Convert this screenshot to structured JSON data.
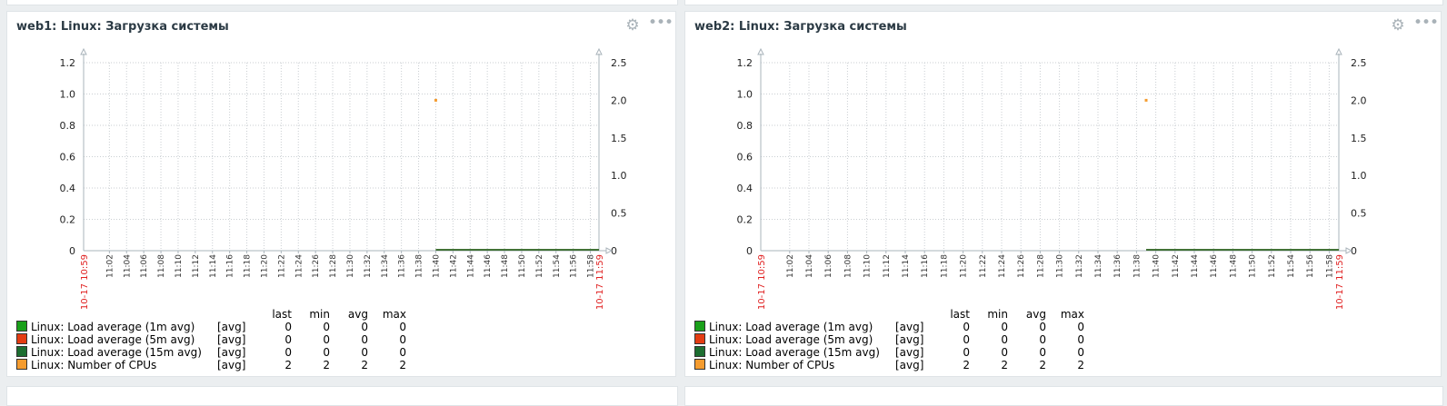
{
  "widgets": [
    {
      "title": "web1: Linux: Загрузка системы",
      "chart_data": {
        "type": "line",
        "x_start_label": "10-17 10:59",
        "x_end_label": "10-17 11:59",
        "x_ticks": [
          "11:02",
          "11:04",
          "11:06",
          "11:08",
          "11:10",
          "11:12",
          "11:14",
          "11:16",
          "11:18",
          "11:20",
          "11:22",
          "11:24",
          "11:26",
          "11:28",
          "11:30",
          "11:32",
          "11:34",
          "11:36",
          "11:38",
          "11:40",
          "11:42",
          "11:44",
          "11:46",
          "11:48",
          "11:50",
          "11:52",
          "11:54",
          "11:56",
          "11:58"
        ],
        "y_left_ticks": [
          "0",
          "0.2",
          "0.4",
          "0.6",
          "0.8",
          "1.0",
          "1.2"
        ],
        "y_left_range": [
          0,
          1.2
        ],
        "y_right_ticks": [
          "0",
          "0.5",
          "1.0",
          "1.5",
          "2.0",
          "2.5"
        ],
        "y_right_range": [
          0,
          2.5
        ],
        "grid": true,
        "series": [
          {
            "name": "Linux: Load average (1m avg)",
            "color": "#1aa01a",
            "axis": "left",
            "points": [
              [
                "11:40",
                0
              ],
              [
                "11:59",
                0
              ]
            ]
          },
          {
            "name": "Linux: Load average (5m avg)",
            "color": "#e43c12",
            "axis": "left",
            "points": [
              [
                "11:40",
                0
              ],
              [
                "11:59",
                0
              ]
            ]
          },
          {
            "name": "Linux: Load average (15m avg)",
            "color": "#1d6e31",
            "axis": "left",
            "points": [
              [
                "11:40",
                0
              ],
              [
                "11:59",
                0
              ]
            ]
          },
          {
            "name": "Linux: Number of CPUs",
            "color": "#f59c2f",
            "axis": "right",
            "points": [
              [
                "11:40",
                2
              ]
            ]
          }
        ]
      },
      "legend": {
        "headers": [
          "last",
          "min",
          "avg",
          "max"
        ],
        "rows": [
          {
            "name": "Linux: Load average (1m avg)",
            "fn": "[avg]",
            "color": "#1aa01a",
            "last": "0",
            "min": "0",
            "avg": "0",
            "max": "0"
          },
          {
            "name": "Linux: Load average (5m avg)",
            "fn": "[avg]",
            "color": "#e43c12",
            "last": "0",
            "min": "0",
            "avg": "0",
            "max": "0"
          },
          {
            "name": "Linux: Load average (15m avg)",
            "fn": "[avg]",
            "color": "#1d6e31",
            "last": "0",
            "min": "0",
            "avg": "0",
            "max": "0"
          },
          {
            "name": "Linux: Number of CPUs",
            "fn": "[avg]",
            "color": "#f59c2f",
            "last": "2",
            "min": "2",
            "avg": "2",
            "max": "2"
          }
        ]
      }
    },
    {
      "title": "web2: Linux: Загрузка системы",
      "chart_data": {
        "type": "line",
        "x_start_label": "10-17 10:59",
        "x_end_label": "10-17 11:59",
        "x_ticks": [
          "11:02",
          "11:04",
          "11:06",
          "11:08",
          "11:10",
          "11:12",
          "11:14",
          "11:16",
          "11:18",
          "11:20",
          "11:22",
          "11:24",
          "11:26",
          "11:28",
          "11:30",
          "11:32",
          "11:34",
          "11:36",
          "11:38",
          "11:40",
          "11:42",
          "11:44",
          "11:46",
          "11:48",
          "11:50",
          "11:52",
          "11:54",
          "11:56",
          "11:58"
        ],
        "y_left_ticks": [
          "0",
          "0.2",
          "0.4",
          "0.6",
          "0.8",
          "1.0",
          "1.2"
        ],
        "y_left_range": [
          0,
          1.2
        ],
        "y_right_ticks": [
          "0",
          "0.5",
          "1.0",
          "1.5",
          "2.0",
          "2.5"
        ],
        "y_right_range": [
          0,
          2.5
        ],
        "grid": true,
        "series": [
          {
            "name": "Linux: Load average (1m avg)",
            "color": "#1aa01a",
            "axis": "left",
            "points": [
              [
                "11:39",
                0
              ],
              [
                "11:59",
                0
              ]
            ]
          },
          {
            "name": "Linux: Load average (5m avg)",
            "color": "#e43c12",
            "axis": "left",
            "points": [
              [
                "11:39",
                0
              ],
              [
                "11:59",
                0
              ]
            ]
          },
          {
            "name": "Linux: Load average (15m avg)",
            "color": "#1d6e31",
            "axis": "left",
            "points": [
              [
                "11:39",
                0
              ],
              [
                "11:59",
                0
              ]
            ]
          },
          {
            "name": "Linux: Number of CPUs",
            "color": "#f59c2f",
            "axis": "right",
            "points": [
              [
                "11:39",
                2
              ]
            ]
          }
        ]
      },
      "legend": {
        "headers": [
          "last",
          "min",
          "avg",
          "max"
        ],
        "rows": [
          {
            "name": "Linux: Load average (1m avg)",
            "fn": "[avg]",
            "color": "#1aa01a",
            "last": "0",
            "min": "0",
            "avg": "0",
            "max": "0"
          },
          {
            "name": "Linux: Load average (5m avg)",
            "fn": "[avg]",
            "color": "#e43c12",
            "last": "0",
            "min": "0",
            "avg": "0",
            "max": "0"
          },
          {
            "name": "Linux: Load average (15m avg)",
            "fn": "[avg]",
            "color": "#1d6e31",
            "last": "0",
            "min": "0",
            "avg": "0",
            "max": "0"
          },
          {
            "name": "Linux: Number of CPUs",
            "fn": "[avg]",
            "color": "#f59c2f",
            "last": "2",
            "min": "2",
            "avg": "2",
            "max": "2"
          }
        ]
      }
    }
  ],
  "icons": {
    "settings": "gear-icon",
    "more": "ellipsis-icon"
  }
}
